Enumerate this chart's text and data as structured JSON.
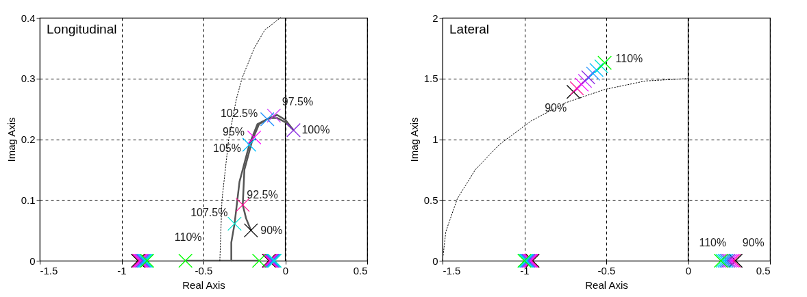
{
  "chart_data": [
    {
      "type": "scatter",
      "xlabel": "Real Axis",
      "ylabel": "Imag Axis",
      "xlim": [
        -1.5,
        0.5
      ],
      "ylim": [
        0,
        0.4
      ],
      "xticks": [
        -1.5,
        -1,
        -0.5,
        0,
        0.5
      ],
      "yticks": [
        0,
        0.1,
        0.2,
        0.3,
        0.4
      ],
      "grid": true,
      "marker": "cross",
      "ref_lines": [
        {
          "axis": "x",
          "value": 0,
          "color": "#000000"
        }
      ],
      "annotations": [
        "Longitudinal",
        {
          "text": "90%",
          "x": -0.21,
          "y": 0.05
        },
        {
          "text": "92.5%",
          "x": -0.26,
          "y": 0.092
        },
        {
          "text": "95%",
          "x": -0.19,
          "y": 0.203
        },
        {
          "text": "97.5%",
          "x": -0.07,
          "y": 0.239
        },
        {
          "text": "100%",
          "x": 0.05,
          "y": 0.215
        },
        {
          "text": "102.5%",
          "x": -0.11,
          "y": 0.233
        },
        {
          "text": "105%",
          "x": -0.22,
          "y": 0.191
        },
        {
          "text": "107.5%",
          "x": -0.31,
          "y": 0.061
        },
        {
          "text": "110%",
          "x": -0.61,
          "y": 0
        }
      ],
      "series": [
        {
          "type": "line",
          "color": "#555555",
          "line_style": "solid",
          "marker": "none",
          "x": [
            -0.21,
            -0.24,
            -0.26,
            -0.25,
            -0.2,
            -0.16,
            -0.1,
            -0.05,
            0,
            0.05
          ],
          "values": [
            0.05,
            0.07,
            0.092,
            0.15,
            0.2,
            0.225,
            0.235,
            0.235,
            0.228,
            0.215
          ]
        },
        {
          "type": "line",
          "color": "#555555",
          "line_style": "solid",
          "marker": "none",
          "x": [
            -0.33,
            -0.33,
            -0.31,
            -0.28,
            -0.22,
            -0.17,
            -0.11,
            -0.05,
            0,
            0.05
          ],
          "values": [
            0,
            0.03,
            0.061,
            0.13,
            0.191,
            0.225,
            0.233,
            0.24,
            0.232,
            0.215
          ]
        },
        {
          "type": "line",
          "color": "#555555",
          "line_style": "solid",
          "marker": "none",
          "x": [
            -0.61,
            -0.16
          ],
          "values": [
            0,
            0
          ]
        },
        {
          "type": "line",
          "color": "#000000",
          "line_style": "dotted",
          "marker": "none",
          "x": [
            -0.4,
            -0.387,
            -0.346,
            -0.3,
            -0.265,
            -0.19,
            -0.125,
            -0.03
          ],
          "values": [
            0,
            0.1,
            0.2,
            0.265,
            0.3,
            0.35,
            0.38,
            0.4
          ]
        },
        {
          "color": "#000000",
          "x": [
            -0.21,
            -0.9,
            -0.1
          ],
          "values": [
            0.05,
            0,
            0
          ]
        },
        {
          "color": "#ff1493",
          "x": [
            -0.26,
            -0.893,
            -0.095
          ],
          "values": [
            0.092,
            0,
            0
          ]
        },
        {
          "color": "#ff00ff",
          "x": [
            -0.19,
            -0.886,
            -0.09
          ],
          "values": [
            0.203,
            0,
            0
          ]
        },
        {
          "color": "#cc33ff",
          "x": [
            -0.07,
            -0.879,
            -0.085
          ],
          "values": [
            0.239,
            0,
            0
          ]
        },
        {
          "color": "#8a2be2",
          "x": [
            0.05,
            -0.872,
            -0.08
          ],
          "values": [
            0.215,
            0,
            0
          ]
        },
        {
          "color": "#1e90ff",
          "x": [
            -0.11,
            -0.865,
            -0.075
          ],
          "values": [
            0.233,
            0,
            0
          ]
        },
        {
          "color": "#00bfff",
          "x": [
            -0.22,
            -0.858,
            -0.07
          ],
          "values": [
            0.191,
            0,
            0
          ]
        },
        {
          "color": "#00e5d0",
          "x": [
            -0.31,
            -0.851,
            -0.065
          ],
          "values": [
            0.061,
            0,
            0
          ]
        },
        {
          "color": "#00ff00",
          "x": [
            -0.61,
            -0.16,
            -0.844
          ],
          "values": [
            0,
            0,
            0
          ]
        }
      ]
    },
    {
      "type": "scatter",
      "xlabel": "Real Axis",
      "ylabel": "Imag Axis",
      "xlim": [
        -1.5,
        0.5
      ],
      "ylim": [
        0,
        2
      ],
      "xticks": [
        -1.5,
        -1,
        -0.5,
        0,
        0.5
      ],
      "yticks": [
        0,
        0.5,
        1,
        1.5,
        2
      ],
      "grid": true,
      "marker": "cross",
      "ref_lines": [
        {
          "axis": "x",
          "value": 0,
          "color": "#000000"
        }
      ],
      "annotations": [
        "Lateral",
        {
          "text": "110%",
          "x": -0.51,
          "y": 1.63
        },
        {
          "text": "90%",
          "x": -0.7,
          "y": 1.39
        },
        {
          "text": "110%",
          "x": 0.2,
          "y": 0
        },
        {
          "text": "90%",
          "x": 0.29,
          "y": 0
        }
      ],
      "series": [
        {
          "type": "line",
          "color": "#000000",
          "line_style": "dotted",
          "marker": "none",
          "x": [
            -1.5,
            -1.48,
            -1.41,
            -1.3,
            -1.15,
            -0.96,
            -0.75,
            -0.51,
            -0.26,
            0
          ],
          "values": [
            0,
            0.24,
            0.51,
            0.75,
            0.96,
            1.15,
            1.3,
            1.41,
            1.48,
            1.5
          ]
        },
        {
          "color": "#000000",
          "x": [
            -0.7,
            -0.95,
            0.29
          ],
          "values": [
            1.39,
            0,
            0
          ]
        },
        {
          "color": "#ff1493",
          "x": [
            -0.68,
            -0.956,
            0.279
          ],
          "values": [
            1.42,
            0,
            0
          ]
        },
        {
          "color": "#ff00ff",
          "x": [
            -0.65,
            -0.962,
            0.268
          ],
          "values": [
            1.45,
            0,
            0
          ]
        },
        {
          "color": "#cc33ff",
          "x": [
            -0.63,
            -0.968,
            0.256
          ],
          "values": [
            1.48,
            0,
            0
          ]
        },
        {
          "color": "#8a2be2",
          "x": [
            -0.61,
            -0.975,
            0.245
          ],
          "values": [
            1.51,
            0,
            0
          ]
        },
        {
          "color": "#1e90ff",
          "x": [
            -0.58,
            -0.981,
            0.234
          ],
          "values": [
            1.54,
            0,
            0
          ]
        },
        {
          "color": "#00bfff",
          "x": [
            -0.56,
            -0.987,
            0.223
          ],
          "values": [
            1.57,
            0,
            0
          ]
        },
        {
          "color": "#00e5d0",
          "x": [
            -0.53,
            -0.993,
            0.211
          ],
          "values": [
            1.6,
            0,
            0
          ]
        },
        {
          "color": "#00ff00",
          "x": [
            -0.51,
            -1.0,
            0.2
          ],
          "values": [
            1.63,
            0,
            0
          ]
        }
      ]
    }
  ]
}
